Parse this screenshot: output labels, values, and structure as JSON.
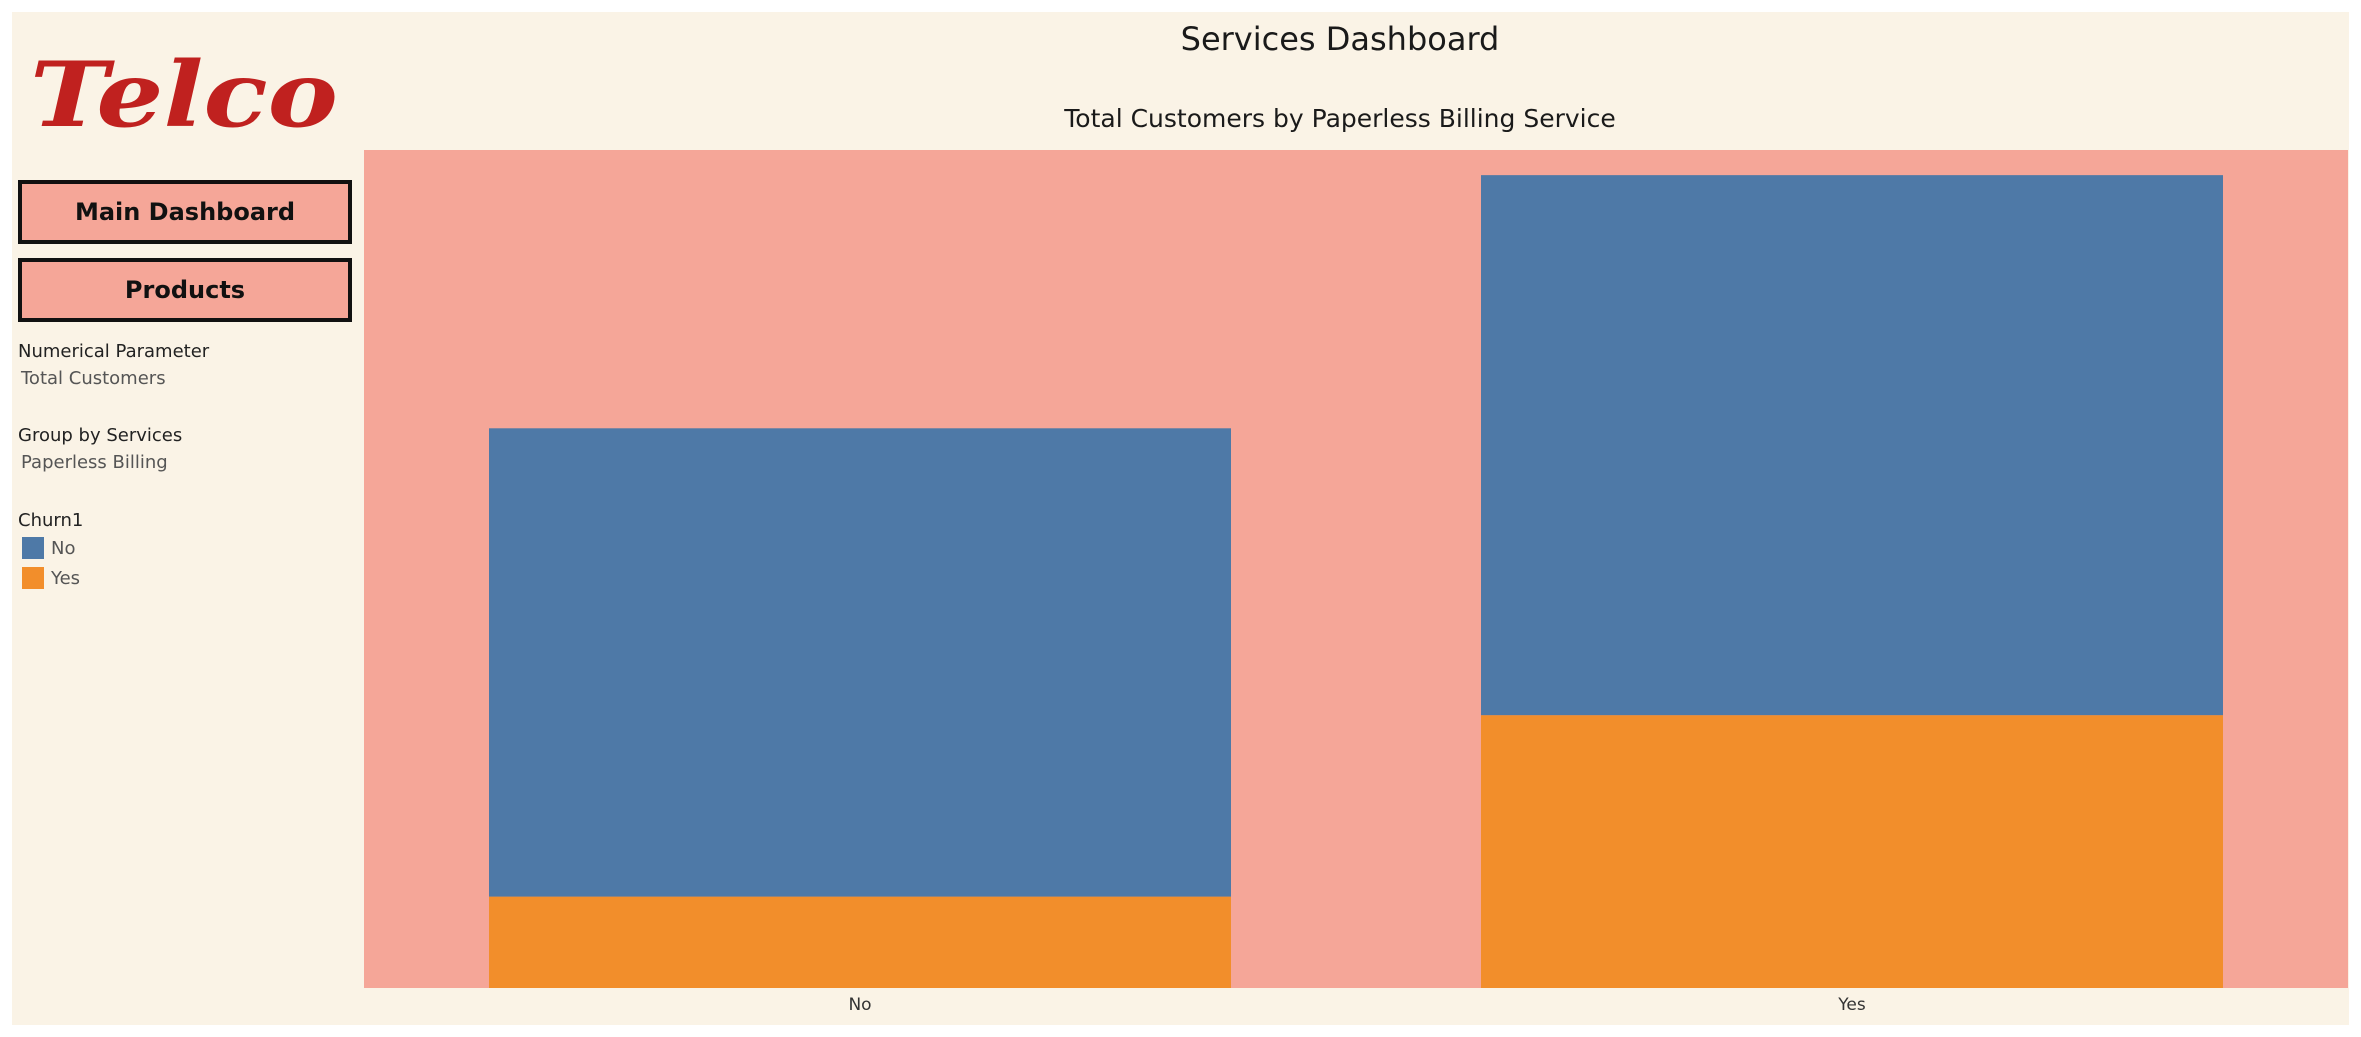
{
  "header": {
    "logo_text": "Telco",
    "dashboard_title": "Services Dashboard",
    "chart_title": "Total Customers by Paperless Billing Service"
  },
  "nav": {
    "main_dashboard_label": "Main Dashboard",
    "products_label": "Products"
  },
  "filters": {
    "numerical_parameter_label": "Numerical Parameter",
    "numerical_parameter_value": "Total Customers",
    "group_by_label": "Group by Services",
    "group_by_value": "Paperless Billing"
  },
  "legend": {
    "title": "Churn1",
    "items": [
      {
        "label": "No",
        "color": "#4e79a7"
      },
      {
        "label": "Yes",
        "color": "#f28e2b"
      }
    ]
  },
  "colors": {
    "background": "#faf3e6",
    "chart_background": "#f5a698",
    "logo": "#c0211f",
    "button_fill": "#f5a698"
  },
  "chart_data": {
    "type": "bar",
    "stacked": true,
    "categories": [
      "No",
      "Yes"
    ],
    "series": [
      {
        "name": "No",
        "color": "#4e79a7",
        "values": [
          2403,
          2771
        ]
      },
      {
        "name": "Yes",
        "color": "#f28e2b",
        "values": [
          469,
          1400
        ]
      }
    ],
    "ylim": [
      0,
      4300
    ],
    "xlabel": "",
    "ylabel": "",
    "grid": false,
    "legend_position": "left-sidebar"
  }
}
